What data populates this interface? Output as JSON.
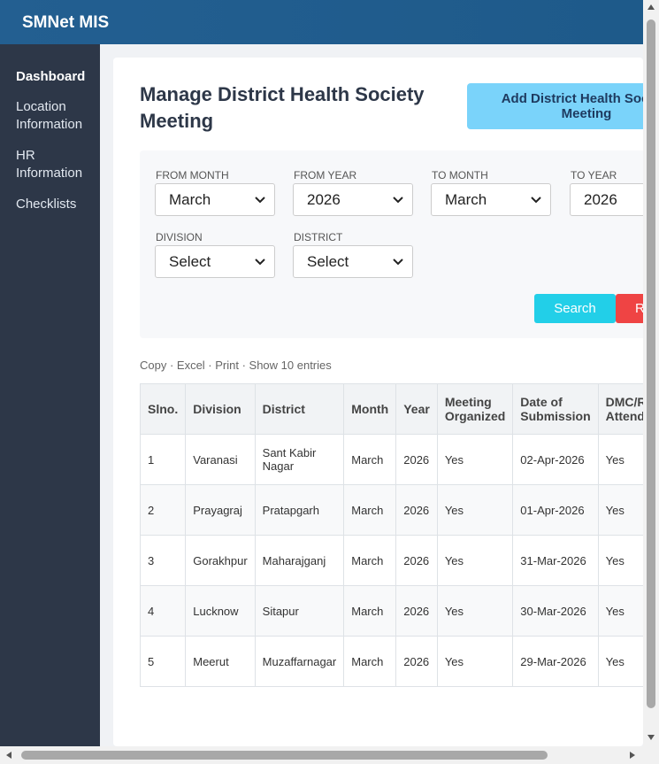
{
  "header": {
    "brand": "SMNet MIS"
  },
  "sidebar": {
    "items": [
      "Dashboard",
      "Location Information",
      "HR Information",
      "Checklists"
    ]
  },
  "page": {
    "title": "Manage District Health Society Meeting",
    "add_button": "Add District Health Society Meeting"
  },
  "filters": {
    "fields": [
      {
        "label": "FROM MONTH",
        "value": "March"
      },
      {
        "label": "FROM YEAR",
        "value": "2026"
      },
      {
        "label": "TO MONTH",
        "value": "March"
      },
      {
        "label": "TO YEAR",
        "value": "2026"
      },
      {
        "label": "DIVISION",
        "value": "Select"
      },
      {
        "label": "DISTRICT",
        "value": "Select"
      }
    ],
    "search": "Search",
    "reset": "Reset"
  },
  "toolbar": "Copy · Excel · Print · Show 10 entries",
  "table": {
    "columns": [
      "Slno.",
      "Division",
      "District",
      "Month",
      "Year",
      "Meeting Organized",
      "Date of Submission",
      "DMC/RC Attended"
    ],
    "rows": [
      [
        "1",
        "Varanasi",
        "Sant Kabir Nagar",
        "March",
        "2026",
        "Yes",
        "02-Apr-2026",
        "Yes"
      ],
      [
        "2",
        "Prayagraj",
        "Pratapgarh",
        "March",
        "2026",
        "Yes",
        "01-Apr-2026",
        "Yes"
      ],
      [
        "3",
        "Gorakhpur",
        "Maharajganj",
        "March",
        "2026",
        "Yes",
        "31-Mar-2026",
        "Yes"
      ],
      [
        "4",
        "Lucknow",
        "Sitapur",
        "March",
        "2026",
        "Yes",
        "30-Mar-2026",
        "Yes"
      ],
      [
        "5",
        "Meerut",
        "Muzaffarnagar",
        "March",
        "2026",
        "Yes",
        "29-Mar-2026",
        "Yes"
      ]
    ]
  }
}
